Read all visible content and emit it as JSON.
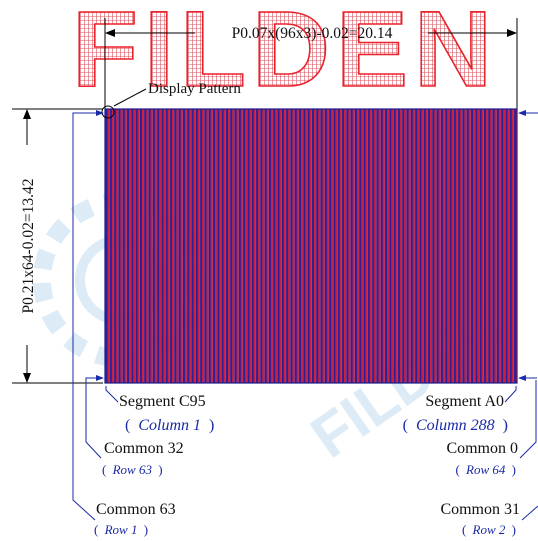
{
  "watermark": {
    "text": "FILDEN",
    "color": "#e8232b",
    "logo_color": "#5fa6d6"
  },
  "dimension_width": "P0.07x(96x3)-0.02=20.14",
  "dimension_height": "P0.21x64-0.02=13.42",
  "display_pattern_label": "Display Pattern",
  "pattern_colors": {
    "red": "#cc1f3a",
    "blue": "#2b1f9c",
    "frame": "#1a1a8c"
  },
  "corner_labels": {
    "bottom_left": {
      "segment": "Segment C95",
      "segment_open": "(",
      "segment_col": "Column 1",
      "segment_close": ")",
      "common_a": "Common 32",
      "common_a_open": "(",
      "common_a_row": "Row 63",
      "common_a_close": ")",
      "common_b": "Common 63",
      "common_b_open": "(",
      "common_b_row": "Row 1",
      "common_b_close": ")"
    },
    "bottom_right": {
      "segment": "Segment A0",
      "segment_open": "(",
      "segment_col": "Column 288",
      "segment_close": ")",
      "common_a": "Common 0",
      "common_a_open": "(",
      "common_a_row": "Row 64",
      "common_a_close": ")",
      "common_b": "Common 31",
      "common_b_open": "(",
      "common_b_row": "Row 2",
      "common_b_close": ")"
    }
  }
}
